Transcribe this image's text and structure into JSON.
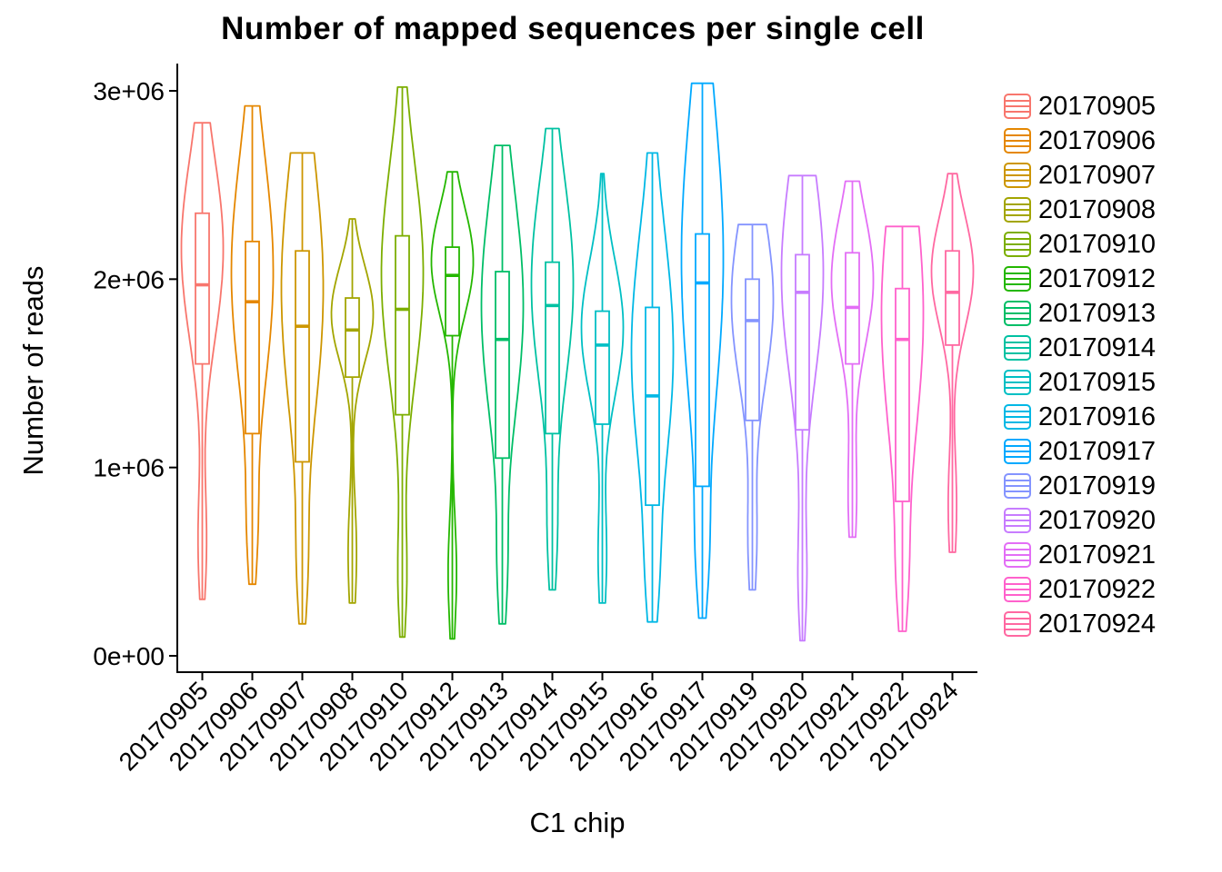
{
  "title": "Number of mapped sequences per single cell",
  "chart_data": {
    "type": "violin",
    "title": "Number of mapped sequences per single cell",
    "xlabel": "C1 chip",
    "ylabel": "Number of reads",
    "ylim": [
      0,
      3000000
    ],
    "grid": false,
    "legend_position": "right",
    "y_ticks": [
      {
        "value": 0,
        "label": "0e+00"
      },
      {
        "value": 1000000,
        "label": "1e+06"
      },
      {
        "value": 2000000,
        "label": "2e+06"
      },
      {
        "value": 3000000,
        "label": "3e+06"
      }
    ],
    "categories": [
      "20170905",
      "20170906",
      "20170907",
      "20170908",
      "20170910",
      "20170912",
      "20170913",
      "20170914",
      "20170915",
      "20170916",
      "20170917",
      "20170919",
      "20170920",
      "20170921",
      "20170922",
      "20170924"
    ],
    "series": [
      {
        "name": "20170905",
        "color": "#F8766D",
        "min": 300000,
        "q1": 1550000,
        "median": 1970000,
        "q3": 2350000,
        "max": 2830000
      },
      {
        "name": "20170906",
        "color": "#E58700",
        "min": 380000,
        "q1": 1180000,
        "median": 1880000,
        "q3": 2200000,
        "max": 2920000
      },
      {
        "name": "20170907",
        "color": "#CD9600",
        "min": 170000,
        "q1": 1030000,
        "median": 1750000,
        "q3": 2150000,
        "max": 2670000
      },
      {
        "name": "20170908",
        "color": "#A3A500",
        "min": 280000,
        "q1": 1480000,
        "median": 1730000,
        "q3": 1900000,
        "max": 2320000
      },
      {
        "name": "20170910",
        "color": "#7CAE00",
        "min": 100000,
        "q1": 1280000,
        "median": 1840000,
        "q3": 2230000,
        "max": 3020000
      },
      {
        "name": "20170912",
        "color": "#24B700",
        "min": 90000,
        "q1": 1700000,
        "median": 2020000,
        "q3": 2170000,
        "max": 2570000
      },
      {
        "name": "20170913",
        "color": "#00BE67",
        "min": 170000,
        "q1": 1050000,
        "median": 1680000,
        "q3": 2040000,
        "max": 2710000
      },
      {
        "name": "20170914",
        "color": "#00C1A2",
        "min": 350000,
        "q1": 1180000,
        "median": 1860000,
        "q3": 2090000,
        "max": 2800000
      },
      {
        "name": "20170915",
        "color": "#00BFC4",
        "min": 280000,
        "q1": 1230000,
        "median": 1650000,
        "q3": 1830000,
        "max": 2560000
      },
      {
        "name": "20170916",
        "color": "#00B8E5",
        "min": 180000,
        "q1": 800000,
        "median": 1380000,
        "q3": 1850000,
        "max": 2670000
      },
      {
        "name": "20170917",
        "color": "#00A9FF",
        "min": 200000,
        "q1": 900000,
        "median": 1980000,
        "q3": 2240000,
        "max": 3040000
      },
      {
        "name": "20170919",
        "color": "#8494FF",
        "min": 350000,
        "q1": 1250000,
        "median": 1780000,
        "q3": 2000000,
        "max": 2290000
      },
      {
        "name": "20170920",
        "color": "#C77CFF",
        "min": 80000,
        "q1": 1200000,
        "median": 1930000,
        "q3": 2130000,
        "max": 2550000
      },
      {
        "name": "20170921",
        "color": "#E36EF6",
        "min": 630000,
        "q1": 1550000,
        "median": 1850000,
        "q3": 2140000,
        "max": 2520000
      },
      {
        "name": "20170922",
        "color": "#FF61CC",
        "min": 130000,
        "q1": 820000,
        "median": 1680000,
        "q3": 1950000,
        "max": 2280000
      },
      {
        "name": "20170924",
        "color": "#FF68A1",
        "min": 550000,
        "q1": 1650000,
        "median": 1930000,
        "q3": 2150000,
        "max": 2560000
      }
    ]
  }
}
